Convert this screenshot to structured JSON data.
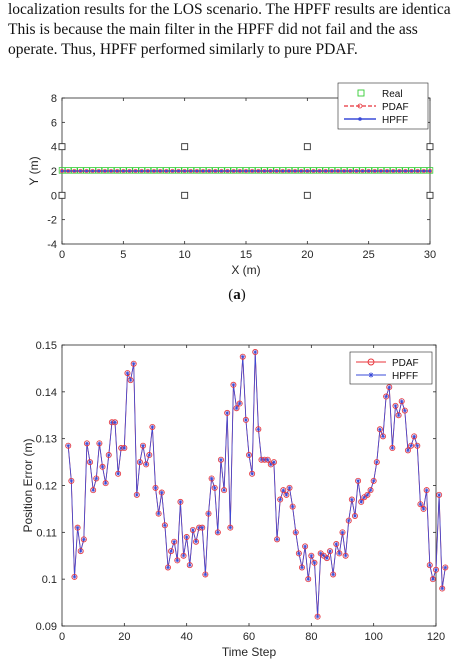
{
  "paragraph": {
    "line1": "localization results for the LOS scenario. The HPFF results are identica",
    "line2": "This is because the main filter in the HPFF did not fail and the ass",
    "line3": "operate. Thus, HPFF performed similarly to pure PDAF."
  },
  "caption_a": "(a)",
  "colors": {
    "real": "#33cc33",
    "pdaf": "#e8333a",
    "hpff": "#3a4bd8",
    "sensor": "#333333"
  },
  "chart_data": [
    {
      "type": "line",
      "xlabel": "X (m)",
      "ylabel": "Y (m)",
      "xlim": [
        0,
        30
      ],
      "ylim": [
        -4,
        8
      ],
      "xticks": [
        "0",
        "5",
        "10",
        "15",
        "20",
        "25",
        "30"
      ],
      "yticks": [
        "-4",
        "-2",
        "0",
        "2",
        "4",
        "6",
        "8"
      ],
      "legend": [
        "Real",
        "PDAF",
        "HPFF"
      ],
      "legend_position": "top-right",
      "grid": false,
      "series": [
        {
          "name": "Real",
          "x_range": [
            0,
            30
          ],
          "y": 2.05
        },
        {
          "name": "PDAF",
          "x_range": [
            0,
            30
          ],
          "y": 2.0
        },
        {
          "name": "HPFF",
          "x_range": [
            0,
            30
          ],
          "y": 2.0
        }
      ],
      "sensors": [
        [
          0,
          4
        ],
        [
          10,
          4
        ],
        [
          20,
          4
        ],
        [
          30,
          4
        ],
        [
          0,
          0
        ],
        [
          10,
          0
        ],
        [
          20,
          0
        ],
        [
          30,
          0
        ]
      ]
    },
    {
      "type": "line",
      "xlabel": "Time Step",
      "ylabel": "Position Error (m)",
      "xlim": [
        0,
        120
      ],
      "ylim": [
        0.09,
        0.15
      ],
      "xticks": [
        "0",
        "20",
        "40",
        "60",
        "80",
        "100",
        "120"
      ],
      "yticks": [
        "0.09",
        "0.1",
        "0.11",
        "0.12",
        "0.13",
        "0.14",
        "0.15"
      ],
      "legend": [
        "PDAF",
        "HPFF"
      ],
      "legend_position": "top-right",
      "grid": false,
      "x_start": 2,
      "series": [
        {
          "name": "PDAF",
          "values": [
            0.1285,
            0.121,
            0.1005,
            0.111,
            0.106,
            0.1085,
            0.129,
            0.125,
            0.119,
            0.1215,
            0.129,
            0.124,
            0.1205,
            0.1265,
            0.1335,
            0.1335,
            0.1225,
            0.128,
            0.128,
            0.144,
            0.1425,
            0.146,
            0.118,
            0.125,
            0.1285,
            0.1245,
            0.1265,
            0.1325,
            0.1195,
            0.114,
            0.1185,
            0.1115,
            0.1025,
            0.106,
            0.108,
            0.104,
            0.1165,
            0.105,
            0.109,
            0.103,
            0.1105,
            0.108,
            0.111,
            0.111,
            0.101,
            0.114,
            0.1215,
            0.1195,
            0.11,
            0.1255,
            0.119,
            0.1355,
            0.111,
            0.1415,
            0.1365,
            0.1375,
            0.1475,
            0.134,
            0.1265,
            0.1225,
            0.1485,
            0.132,
            0.1255,
            0.1255,
            0.1255,
            0.1245,
            0.125,
            0.1085,
            0.117,
            0.119,
            0.118,
            0.1195,
            0.1155,
            0.11,
            0.1055,
            0.1025,
            0.107,
            0.1,
            0.105,
            0.1035,
            0.092,
            0.1055,
            0.105,
            0.1045,
            0.106,
            0.101,
            0.1075,
            0.1055,
            0.11,
            0.105,
            0.1125,
            0.117,
            0.1135,
            0.121,
            0.1165,
            0.1175,
            0.118,
            0.119,
            0.121,
            0.125,
            0.132,
            0.1305,
            0.139,
            0.141,
            0.128,
            0.137,
            0.135,
            0.138,
            0.136,
            0.1275,
            0.1285,
            0.1305,
            0.1285,
            0.116,
            0.115,
            0.119,
            0.103,
            0.1,
            0.102,
            0.118,
            0.098,
            0.1025
          ]
        },
        {
          "name": "HPFF",
          "same_as": "PDAF"
        }
      ]
    }
  ]
}
